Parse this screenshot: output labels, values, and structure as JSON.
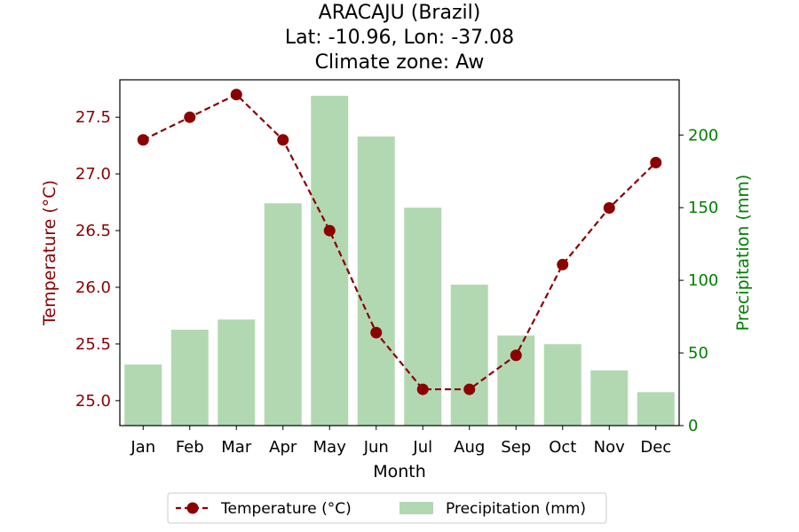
{
  "chart_data": {
    "type": "bar+line",
    "title_lines": [
      "ARACAJU (Brazil)",
      "Lat: -10.96, Lon: -37.08",
      "Climate zone: Aw"
    ],
    "xlabel": "Month",
    "categories": [
      "Jan",
      "Feb",
      "Mar",
      "Apr",
      "May",
      "Jun",
      "Jul",
      "Aug",
      "Sep",
      "Oct",
      "Nov",
      "Dec"
    ],
    "series": [
      {
        "name": "Temperature (°C)",
        "kind": "line",
        "axis": "left",
        "color": "#8b0000",
        "values": [
          27.3,
          27.5,
          27.7,
          27.3,
          26.5,
          25.6,
          25.1,
          25.1,
          25.4,
          26.2,
          26.7,
          27.1
        ]
      },
      {
        "name": "Precipitation (mm)",
        "kind": "bar",
        "axis": "right",
        "color": "#b2d8b2",
        "values": [
          42,
          66,
          73,
          153,
          227,
          199,
          150,
          97,
          62,
          56,
          38,
          23
        ]
      }
    ],
    "y_left": {
      "label": "Temperature (°C)",
      "range": [
        24.78,
        27.83
      ],
      "ticks": [
        "25.0",
        "25.5",
        "26.0",
        "26.5",
        "27.0",
        "27.5"
      ],
      "color": "#8b0000"
    },
    "y_right": {
      "label": "Precipitation (mm)",
      "range": [
        0,
        238
      ],
      "ticks": [
        "0",
        "50",
        "100",
        "150",
        "200"
      ],
      "color": "#008000"
    },
    "legend": {
      "placement": "bottom-center",
      "entries": [
        "Temperature (°C)",
        "Precipitation (mm)"
      ]
    },
    "grid": false
  }
}
